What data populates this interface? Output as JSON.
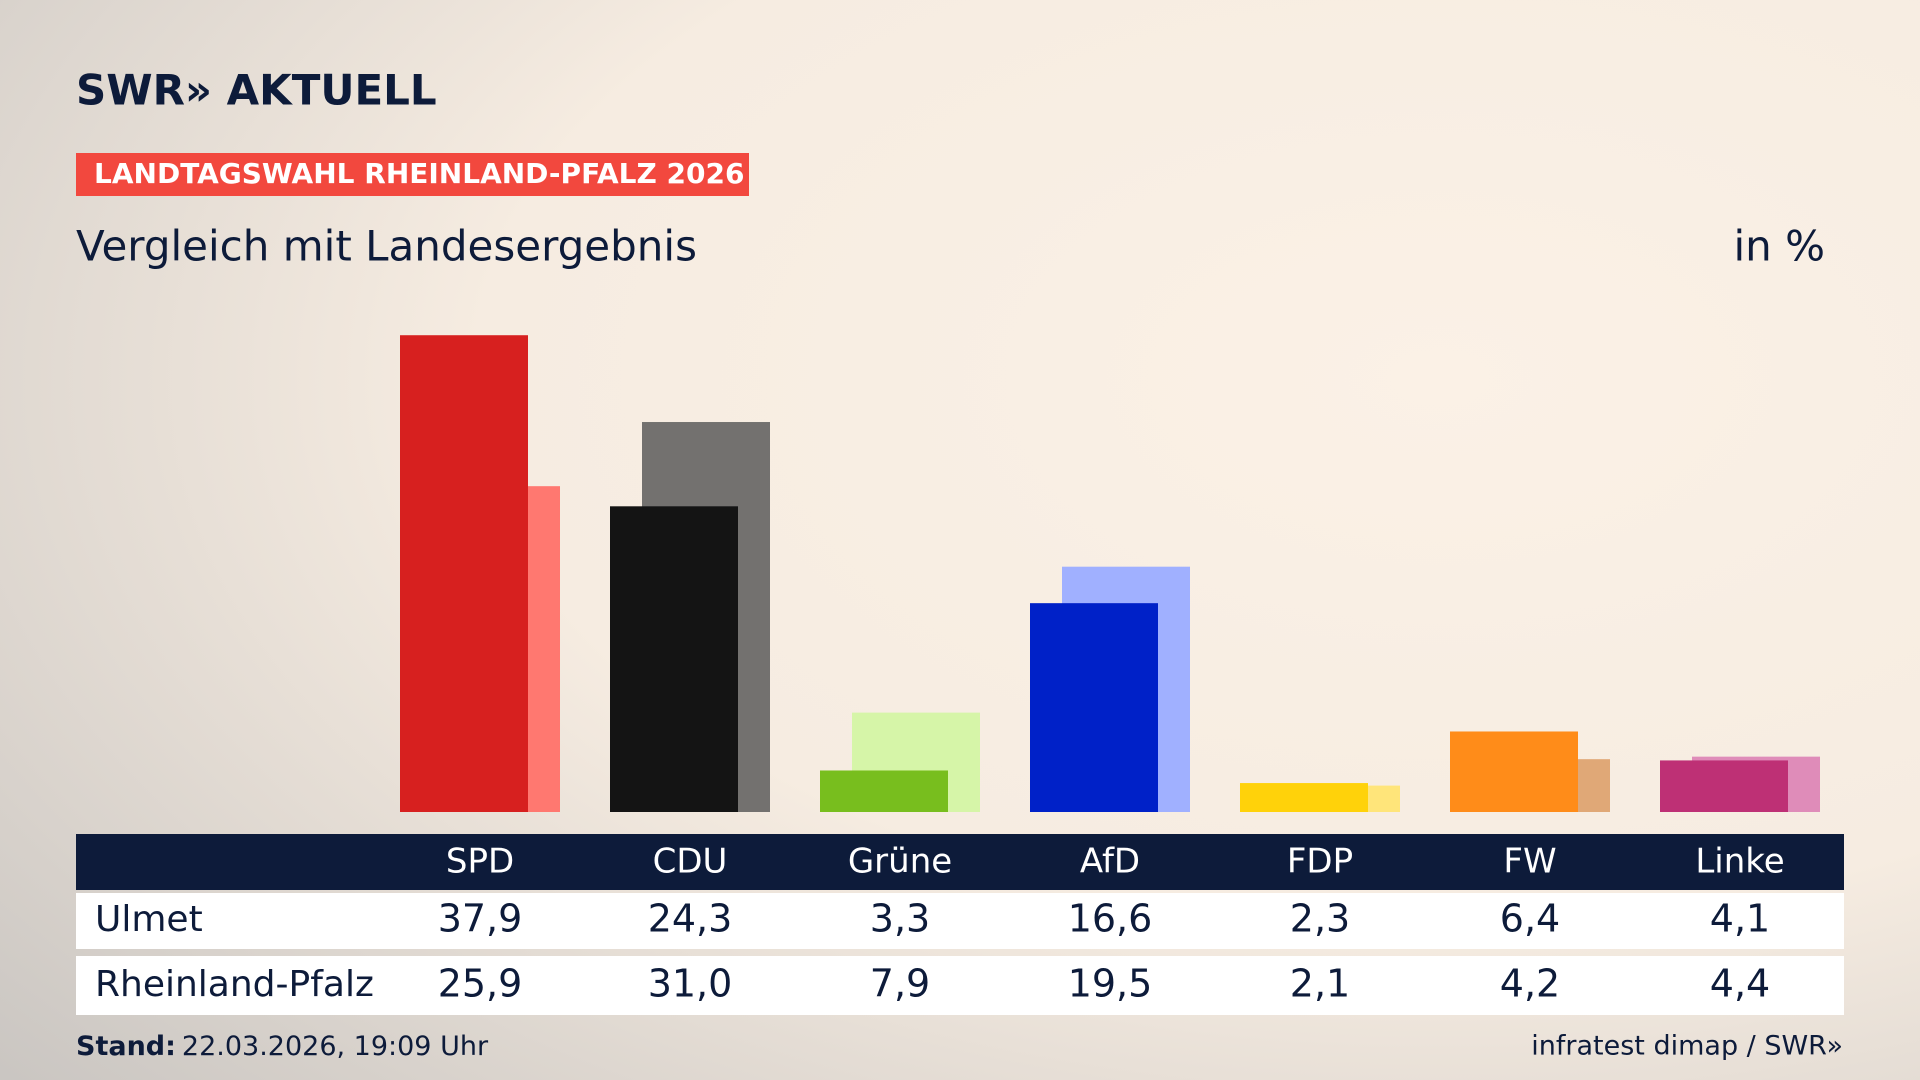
{
  "chart_data": {
    "type": "bar",
    "brand": "SWR» AKTUELL",
    "kicker": "LANDTAGSWAHL RHEINLAND-PFALZ 2026",
    "title": "Vergleich mit Landesergebnis",
    "unit": "in %",
    "categories": [
      "SPD",
      "CDU",
      "Grüne",
      "AfD",
      "FDP",
      "FW",
      "Linke"
    ],
    "series": [
      {
        "name": "Ulmet",
        "values": [
          37.9,
          24.3,
          3.3,
          16.6,
          2.3,
          6.4,
          4.1
        ],
        "value_labels": [
          "37,9",
          "24,3",
          "3,3",
          "16,6",
          "2,3",
          "6,4",
          "4,1"
        ],
        "colors": [
          "#d7201f",
          "#141414",
          "#78be1e",
          "#0021c8",
          "#ffd20a",
          "#ff8c19",
          "#be3075"
        ]
      },
      {
        "name": "Rheinland-Pfalz",
        "values": [
          25.9,
          31.0,
          7.9,
          19.5,
          2.1,
          4.2,
          4.4
        ],
        "value_labels": [
          "25,9",
          "31,0",
          "7,9",
          "19,5",
          "2,1",
          "4,2",
          "4,4"
        ],
        "colors": [
          "#ff7870",
          "#73716f",
          "#d6f5a8",
          "#a0b0ff",
          "#ffe57a",
          "#e0a877",
          "#df8cb9"
        ]
      }
    ],
    "footer_label": "Stand:",
    "footer_date": "22.03.2026, 19:09 Uhr",
    "source": "infratest dimap / SWR»"
  }
}
